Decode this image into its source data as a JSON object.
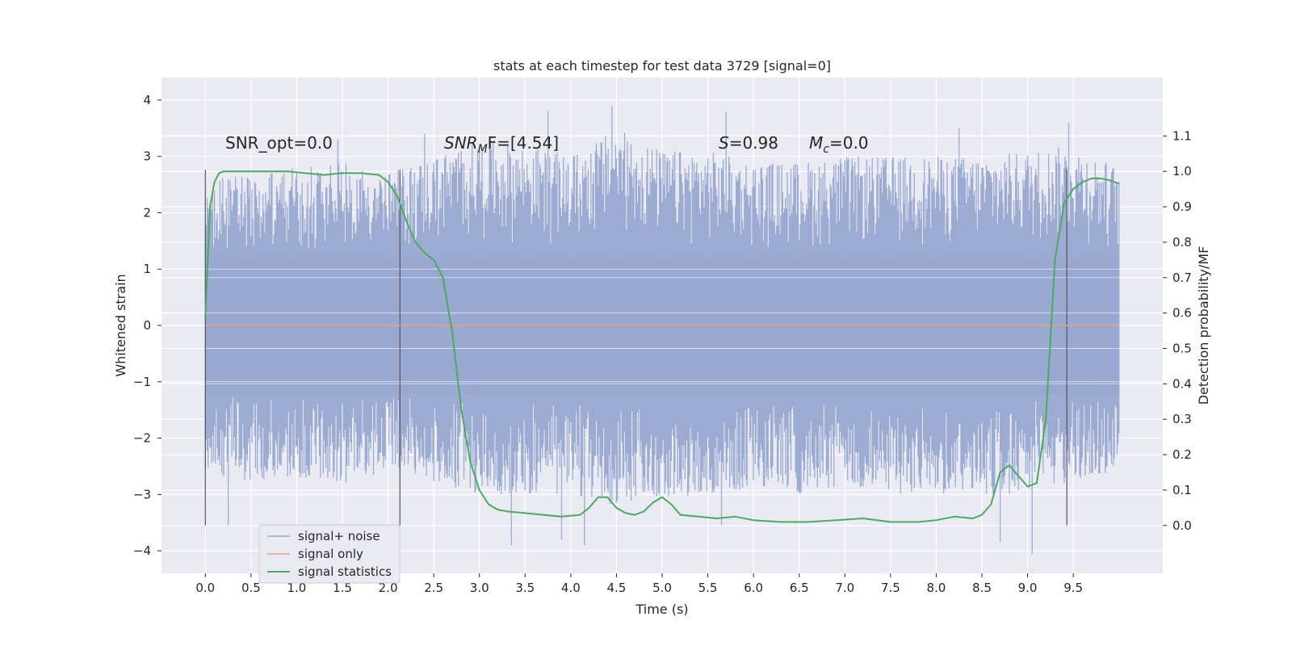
{
  "chart_data": {
    "type": "line",
    "title": "stats at each timestep for test data 3729 [signal=0]",
    "xlabel": "Time (s)",
    "ylabel": "Whitened strain",
    "y2label": "Detection probability/MF",
    "xlim": [
      -0.48,
      10.48
    ],
    "ylim": [
      -4.4,
      4.4
    ],
    "y2lim": [
      -0.135,
      1.265
    ],
    "x_ticks": [
      "0.0",
      "0.5",
      "1.0",
      "1.5",
      "2.0",
      "2.5",
      "3.0",
      "3.5",
      "4.0",
      "4.5",
      "5.0",
      "5.5",
      "6.0",
      "6.5",
      "7.0",
      "7.5",
      "8.0",
      "8.5",
      "9.0",
      "9.5"
    ],
    "y_ticks": [
      "4",
      "3",
      "2",
      "1",
      "0",
      "−1",
      "−2",
      "−3",
      "−4"
    ],
    "y2_ticks": [
      "1.1",
      "1.0",
      "0.9",
      "0.8",
      "0.7",
      "0.6",
      "0.5",
      "0.4",
      "0.3",
      "0.2",
      "0.1",
      "0.0"
    ],
    "grid": true,
    "legend_position": "lower-left",
    "annotations": {
      "snr_opt": "SNR_opt=0.0",
      "snr_mf_main": "SNR",
      "snr_mf_sub": "M",
      "snr_mf_rest": "F=[4.54]",
      "s_main": "S",
      "s_rest": "=0.98",
      "mc_main": "M",
      "mc_sub": "c",
      "mc_rest": "=0.0"
    },
    "vertical_markers": [
      0.0,
      2.13,
      9.43
    ],
    "series": [
      {
        "name": "signal+ noise",
        "color": "#98a8d0",
        "x_range": [
          0.0,
          10.0
        ],
        "envelope_upper": [
          [
            0,
            2.6
          ],
          [
            0.5,
            2.7
          ],
          [
            1.0,
            2.8
          ],
          [
            1.5,
            2.9
          ],
          [
            2.0,
            2.7
          ],
          [
            2.5,
            3.0
          ],
          [
            3.0,
            3.3
          ],
          [
            3.5,
            3.2
          ],
          [
            4.0,
            3.0
          ],
          [
            4.5,
            3.5
          ],
          [
            5.0,
            3.1
          ],
          [
            5.5,
            3.1
          ],
          [
            6.0,
            2.9
          ],
          [
            6.5,
            2.9
          ],
          [
            7.0,
            3.0
          ],
          [
            7.5,
            3.0
          ],
          [
            8.0,
            3.0
          ],
          [
            8.5,
            3.0
          ],
          [
            9.0,
            3.1
          ],
          [
            9.5,
            3.2
          ],
          [
            10.0,
            2.8
          ]
        ],
        "envelope_lower": [
          [
            0,
            -2.6
          ],
          [
            0.5,
            -2.8
          ],
          [
            1.0,
            -2.7
          ],
          [
            1.5,
            -2.8
          ],
          [
            2.0,
            -2.6
          ],
          [
            2.5,
            -2.8
          ],
          [
            3.0,
            -3.0
          ],
          [
            3.5,
            -3.0
          ],
          [
            4.0,
            -3.0
          ],
          [
            4.5,
            -3.2
          ],
          [
            5.0,
            -3.1
          ],
          [
            5.5,
            -3.0
          ],
          [
            6.0,
            -2.9
          ],
          [
            6.5,
            -3.0
          ],
          [
            7.0,
            -2.9
          ],
          [
            7.5,
            -3.0
          ],
          [
            8.0,
            -3.0
          ],
          [
            8.5,
            -3.0
          ],
          [
            9.0,
            -3.0
          ],
          [
            9.5,
            -2.8
          ],
          [
            10.0,
            -2.6
          ]
        ],
        "spikes": [
          [
            0.25,
            -3.55
          ],
          [
            3.35,
            -3.9
          ],
          [
            3.9,
            -3.8
          ],
          [
            4.15,
            -3.9
          ],
          [
            4.45,
            3.9
          ],
          [
            5.65,
            -3.55
          ],
          [
            5.7,
            3.8
          ],
          [
            3.75,
            3.8
          ],
          [
            8.7,
            -3.85
          ],
          [
            9.05,
            -4.05
          ],
          [
            9.45,
            3.6
          ],
          [
            2.4,
            3.4
          ],
          [
            1.45,
            3.3
          ],
          [
            8.25,
            3.5
          ]
        ],
        "core_range": [
          -1.2,
          1.2
        ]
      },
      {
        "name": "signal only",
        "color": "#e8a080",
        "axis": "left",
        "x": [
          0.0,
          10.0
        ],
        "y": [
          0.0,
          0.0
        ]
      },
      {
        "name": "signal statistics",
        "color": "#4caa5e",
        "axis": "right",
        "x": [
          0.0,
          0.05,
          0.1,
          0.15,
          0.2,
          0.3,
          0.5,
          0.7,
          0.9,
          1.1,
          1.3,
          1.5,
          1.7,
          1.9,
          2.0,
          2.1,
          2.2,
          2.3,
          2.4,
          2.5,
          2.6,
          2.7,
          2.8,
          2.9,
          3.0,
          3.1,
          3.2,
          3.3,
          3.5,
          3.7,
          3.9,
          4.1,
          4.2,
          4.3,
          4.4,
          4.5,
          4.6,
          4.7,
          4.8,
          4.9,
          5.0,
          5.1,
          5.2,
          5.4,
          5.6,
          5.8,
          6.0,
          6.3,
          6.6,
          6.9,
          7.2,
          7.5,
          7.8,
          8.0,
          8.2,
          8.4,
          8.5,
          8.6,
          8.7,
          8.8,
          8.9,
          9.0,
          9.1,
          9.2,
          9.3,
          9.4,
          9.5,
          9.6,
          9.7,
          9.8,
          9.9,
          10.0
        ],
        "y": [
          0.59,
          0.9,
          0.97,
          0.995,
          1.0,
          1.0,
          1.0,
          1.0,
          1.0,
          0.995,
          0.99,
          0.995,
          0.995,
          0.99,
          0.97,
          0.93,
          0.86,
          0.8,
          0.77,
          0.75,
          0.7,
          0.55,
          0.33,
          0.18,
          0.1,
          0.06,
          0.045,
          0.04,
          0.035,
          0.03,
          0.025,
          0.03,
          0.05,
          0.08,
          0.08,
          0.05,
          0.035,
          0.03,
          0.04,
          0.065,
          0.08,
          0.06,
          0.03,
          0.025,
          0.02,
          0.025,
          0.015,
          0.01,
          0.01,
          0.015,
          0.02,
          0.01,
          0.01,
          0.015,
          0.025,
          0.02,
          0.03,
          0.06,
          0.15,
          0.17,
          0.14,
          0.11,
          0.12,
          0.3,
          0.75,
          0.91,
          0.95,
          0.97,
          0.98,
          0.98,
          0.975,
          0.965
        ]
      }
    ]
  }
}
